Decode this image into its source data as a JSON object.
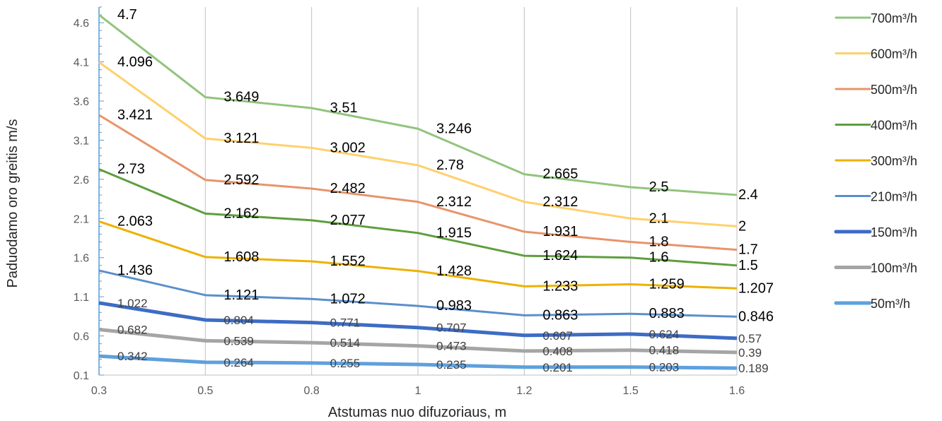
{
  "chart_data": {
    "type": "line",
    "x": [
      "0.3",
      "0.5",
      "0.8",
      "1",
      "1.2",
      "1.5",
      "1.6"
    ],
    "xlabel": "Atstumas nuo difuzoriaus, m",
    "ylabel": "Paduodamo oro greitis m/s",
    "yticks": [
      "0.1",
      "0.6",
      "1.1",
      "1.6",
      "2.1",
      "2.6",
      "3.1",
      "3.6",
      "4.1",
      "4.6"
    ],
    "ylim": [
      0.1,
      4.8
    ],
    "grid": "vertical",
    "legend_position": "right",
    "series": [
      {
        "name": "700m³/h",
        "color": "#92C47D",
        "values": [
          4.7,
          3.649,
          3.51,
          3.246,
          2.665,
          2.5,
          2.4
        ],
        "labels": [
          "4.7",
          "3.649",
          "3.51",
          "3.246",
          "2.665",
          "2.5",
          "2.4"
        ]
      },
      {
        "name": "600m³/h",
        "color": "#FFD06B",
        "values": [
          4.096,
          3.121,
          3.002,
          2.78,
          2.312,
          2.1,
          2.0
        ],
        "labels": [
          "4.096",
          "3.121",
          "3.002",
          "2.78",
          "2.312",
          "2.1",
          "2"
        ]
      },
      {
        "name": "500m³/h",
        "color": "#E8946A",
        "values": [
          3.421,
          2.592,
          2.482,
          2.312,
          1.931,
          1.8,
          1.7
        ],
        "labels": [
          "3.421",
          "2.592",
          "2.482",
          "2.312",
          "1.931",
          "1.8",
          "1.7"
        ]
      },
      {
        "name": "400m³/h",
        "color": "#5E9E3E",
        "values": [
          2.73,
          2.162,
          2.077,
          1.915,
          1.624,
          1.6,
          1.5
        ],
        "labels": [
          "2.73",
          "2.162",
          "2.077",
          "1.915",
          "1.624",
          "1.6",
          "1.5"
        ]
      },
      {
        "name": "300m³/h",
        "color": "#EDB100",
        "values": [
          2.063,
          1.608,
          1.552,
          1.428,
          1.233,
          1.259,
          1.207
        ],
        "labels": [
          "2.063",
          "1.608",
          "1.552",
          "1.428",
          "1.233",
          "1.259",
          "1.207"
        ]
      },
      {
        "name": "210m³/h",
        "color": "#5B8FCB",
        "values": [
          1.436,
          1.121,
          1.072,
          0.983,
          0.863,
          0.883,
          0.846
        ],
        "labels": [
          "1.436",
          "1.121",
          "1.072",
          "0.983",
          "0.863",
          "0.883",
          "0.846"
        ]
      },
      {
        "name": "150m³/h",
        "color": "#3D6CC4",
        "values": [
          1.022,
          0.804,
          0.771,
          0.707,
          0.607,
          0.624,
          0.57
        ],
        "labels": [
          "1.022",
          "0.804",
          "0.771",
          "0.707",
          "0.607",
          "0.624",
          "0.57"
        ]
      },
      {
        "name": "100m³/h",
        "color": "#A5A5A5",
        "values": [
          0.682,
          0.539,
          0.514,
          0.473,
          0.408,
          0.418,
          0.39
        ],
        "labels": [
          "0.682",
          "0.539",
          "0.514",
          "0.473",
          "0.408",
          "0.418",
          "0.39"
        ]
      },
      {
        "name": "50m³/h",
        "color": "#5FA0DD",
        "values": [
          0.342,
          0.264,
          0.255,
          0.235,
          0.201,
          0.203,
          0.189
        ],
        "labels": [
          "0.342",
          "0.264",
          "0.255",
          "0.235",
          "0.201",
          "0.203",
          "0.189"
        ]
      }
    ]
  }
}
